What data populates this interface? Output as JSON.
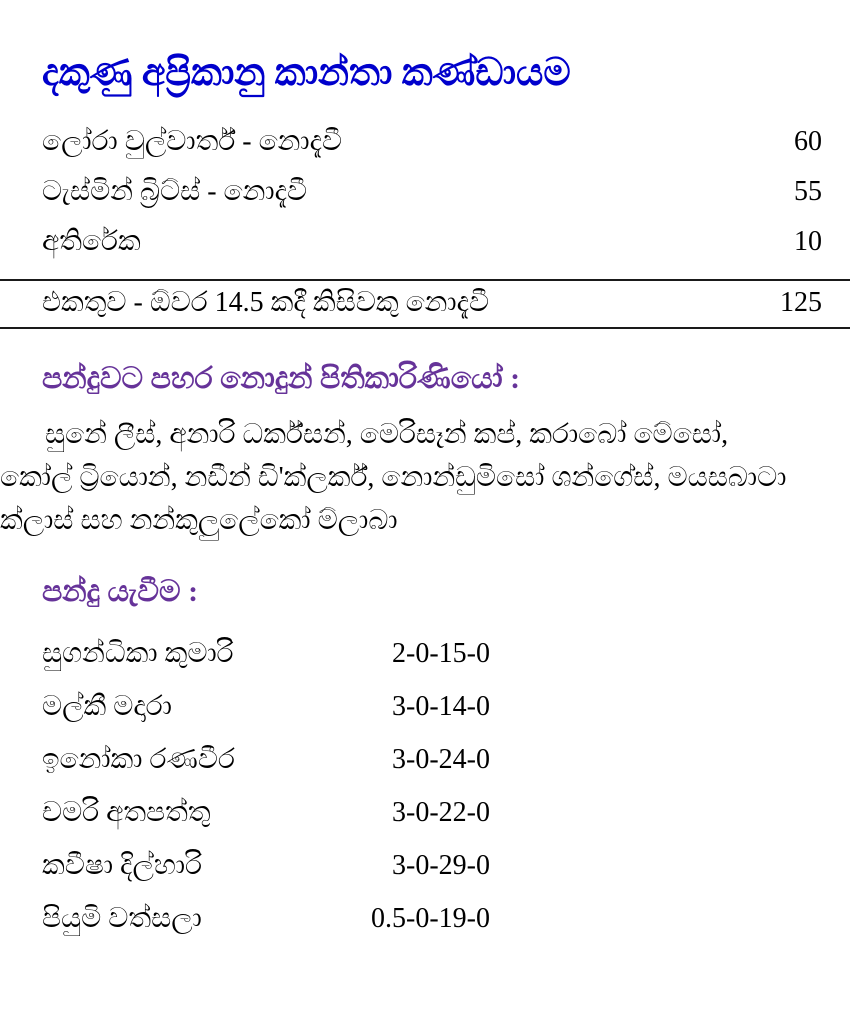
{
  "page": {
    "title": "දකුණු අප්‍රිකානු කාන්තා කණ්ඩායම",
    "colors": {
      "title_blue": "#0000cc",
      "heading_purple": "#663399",
      "text": "#000000",
      "background": "#ffffff"
    }
  },
  "batting": {
    "rows": [
      {
        "label": "ලෝරා වුල්වාර්ත් - නොදැවී",
        "runs": "60"
      },
      {
        "label": "ටැස්මින් බ්‍රිට්ස් - නොදැවී",
        "runs": "55"
      },
      {
        "label": "අතිරේක",
        "runs": "10"
      }
    ],
    "total": {
      "label": "එකතුව - ඕවර 14.5 කදී කිසිවකු නොදැවී",
      "runs": "125"
    }
  },
  "did_not_bat": {
    "heading": "පන්දුවට පහර නොදුන් පිතිකාරිණියෝ :",
    "names": "සුනේ ලීස්, අනාරි ධර්ක්සන්, මෙරිසෑන් කප්, කරාබෝ මේසෝ, කෝල් ට්‍රියොන්, නඩීන් ඩි'ක්ලර්ක්, නොන්ඩුමිසෝ ශන්ගේස්, මයසබාටා ක්ලාස් සහ නන්කුලුලේකෝ ම්ලාබා"
  },
  "bowling": {
    "heading": "පන්දු යැවීම :",
    "rows": [
      {
        "name": "සුගන්ධිකා කුමාරි",
        "figures": "2-0-15-0"
      },
      {
        "name": "මල්කී මදාරා",
        "figures": "3-0-14-0"
      },
      {
        "name": "ඉනෝකා රණවීර",
        "figures": "3-0-24-0"
      },
      {
        "name": "චමරි අතපත්තු",
        "figures": "3-0-22-0"
      },
      {
        "name": "කවීෂා දිල්හාරි",
        "figures": "3-0-29-0"
      },
      {
        "name": "පියුමි වත්සලා",
        "figures": "0.5-0-19-0"
      }
    ]
  }
}
